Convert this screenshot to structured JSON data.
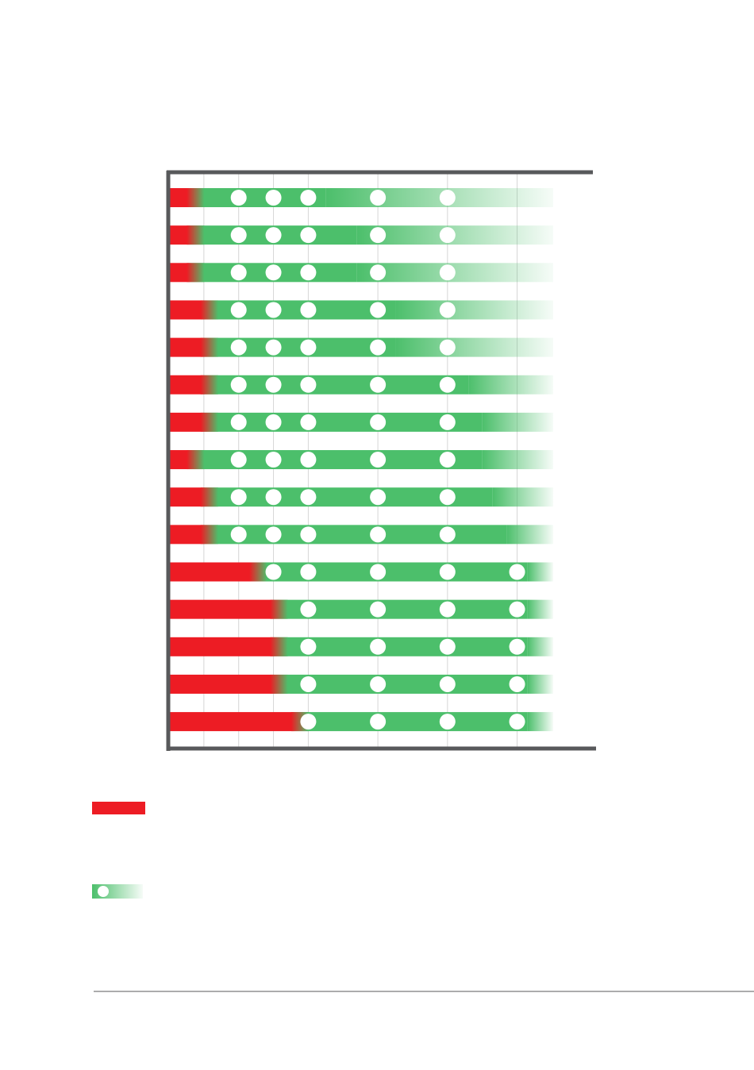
{
  "chart_data": {
    "type": "bar",
    "orientation": "horizontal",
    "stacked": true,
    "series": [
      {
        "color": "#ed1c24",
        "values": [
          0.6,
          0.6,
          0.6,
          1.0,
          1.0,
          1.0,
          1.0,
          0.6,
          1.0,
          1.0,
          2.4,
          3.0,
          3.0,
          3.0,
          3.6
        ]
      },
      {
        "color": "#4cbf6b",
        "values": [
          3.9,
          4.8,
          4.8,
          5.5,
          5.5,
          7.6,
          8.0,
          8.4,
          8.3,
          8.7,
          7.9,
          7.3,
          7.3,
          7.3,
          6.7
        ]
      }
    ],
    "markers": [
      [
        2,
        3,
        4,
        6,
        8
      ],
      [
        2,
        3,
        4,
        6,
        8
      ],
      [
        2,
        3,
        4,
        6,
        8
      ],
      [
        2,
        3,
        4,
        6,
        8
      ],
      [
        2,
        3,
        4,
        6,
        8
      ],
      [
        2,
        3,
        4,
        6,
        8
      ],
      [
        2,
        3,
        4,
        6,
        8
      ],
      [
        2,
        3,
        4,
        6,
        8
      ],
      [
        2,
        3,
        4,
        6,
        8
      ],
      [
        2,
        3,
        4,
        6,
        8
      ],
      [
        3,
        4,
        6,
        8,
        10
      ],
      [
        4,
        6,
        8,
        10
      ],
      [
        4,
        6,
        8,
        10
      ],
      [
        4,
        6,
        8,
        10
      ],
      [
        4,
        6,
        8,
        10
      ]
    ],
    "marker_color": "#ffffff",
    "xlim": [
      0,
      12.2
    ],
    "xticks": [
      0,
      1,
      2,
      3,
      4,
      6,
      8,
      10
    ],
    "grid": true
  }
}
